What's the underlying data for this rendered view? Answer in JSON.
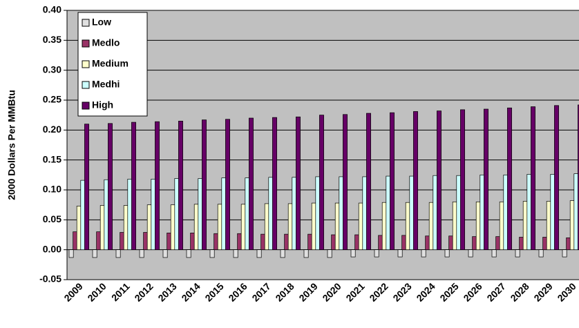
{
  "chart_data": {
    "type": "bar",
    "y_label": "2000 Dollars Per MMBtu",
    "categories": [
      "2009",
      "2010",
      "2011",
      "2012",
      "2013",
      "2014",
      "2015",
      "2016",
      "2017",
      "2018",
      "2019",
      "2020",
      "2021",
      "2022",
      "2023",
      "2024",
      "2025",
      "2026",
      "2027",
      "2028",
      "2029",
      "2030"
    ],
    "series": [
      {
        "name": "Low",
        "color": "#e0e0e0",
        "values": [
          -0.013,
          -0.013,
          -0.013,
          -0.013,
          -0.013,
          -0.013,
          -0.013,
          -0.013,
          -0.013,
          -0.013,
          -0.013,
          -0.013,
          -0.012,
          -0.012,
          -0.012,
          -0.012,
          -0.012,
          -0.012,
          -0.012,
          -0.012,
          -0.012,
          -0.012
        ]
      },
      {
        "name": "Medlo",
        "color": "#993366",
        "values": [
          0.03,
          0.03,
          0.029,
          0.029,
          0.028,
          0.028,
          0.027,
          0.027,
          0.026,
          0.026,
          0.026,
          0.025,
          0.025,
          0.024,
          0.024,
          0.023,
          0.023,
          0.022,
          0.022,
          0.021,
          0.021,
          0.02
        ]
      },
      {
        "name": "Medium",
        "color": "#ffffcc",
        "values": [
          0.073,
          0.074,
          0.074,
          0.075,
          0.075,
          0.076,
          0.076,
          0.076,
          0.077,
          0.077,
          0.078,
          0.078,
          0.078,
          0.079,
          0.079,
          0.079,
          0.08,
          0.08,
          0.08,
          0.081,
          0.081,
          0.082
        ]
      },
      {
        "name": "Medhi",
        "color": "#ccffff",
        "values": [
          0.116,
          0.117,
          0.118,
          0.118,
          0.119,
          0.119,
          0.12,
          0.12,
          0.121,
          0.121,
          0.122,
          0.122,
          0.122,
          0.123,
          0.123,
          0.124,
          0.124,
          0.125,
          0.125,
          0.126,
          0.126,
          0.127
        ]
      },
      {
        "name": "High",
        "color": "#660066",
        "values": [
          0.21,
          0.211,
          0.213,
          0.214,
          0.215,
          0.217,
          0.218,
          0.22,
          0.221,
          0.222,
          0.225,
          0.226,
          0.228,
          0.229,
          0.231,
          0.232,
          0.234,
          0.235,
          0.237,
          0.239,
          0.241,
          0.242
        ]
      }
    ],
    "ylim": [
      -0.05,
      0.4
    ],
    "yticks": [
      -0.05,
      {
        "value": 0,
        "label": "0.00"
      },
      0.05,
      {
        "value": 0.1,
        "label": "0.10"
      },
      0.15,
      {
        "value": 0.2,
        "label": "0.20"
      },
      0.25,
      {
        "value": 0.3,
        "label": "0.30"
      },
      0.35,
      {
        "value": 0.4,
        "label": "0.40"
      }
    ],
    "grid": true,
    "plot_background": "#c0c0c0",
    "legend": "upper left"
  }
}
